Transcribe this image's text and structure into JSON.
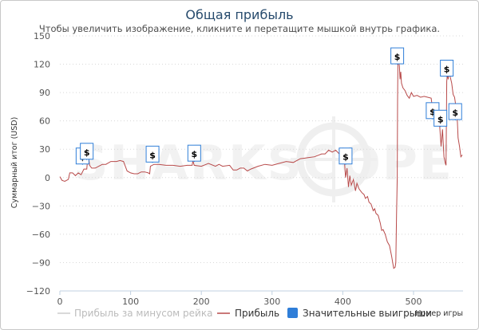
{
  "chart_data": {
    "type": "line",
    "title": "Общая прибыль",
    "subtitle": "Чтобы увеличить изображение, кликните и перетащите мышкой внутрь графика.",
    "xlabel": "Номер игры",
    "ylabel": "Суммарный итог (USD)",
    "xlim": [
      0,
      570
    ],
    "ylim": [
      -120,
      150
    ],
    "x_ticks": [
      0,
      100,
      200,
      300,
      400,
      500
    ],
    "y_ticks": [
      -120,
      -90,
      -60,
      -30,
      0,
      30,
      60,
      90,
      120,
      150
    ],
    "watermark": "SHARKSCOPE",
    "legend": [
      {
        "label": "Прибыль за минусом рейка",
        "color": "#cccccc",
        "kind": "line"
      },
      {
        "label": "Прибыль",
        "color": "#b84a4a",
        "kind": "line"
      },
      {
        "label": "Значительные выигрыши",
        "color": "#2f7ed8",
        "kind": "box"
      }
    ],
    "series": [
      {
        "name": "Прибыль",
        "color": "#b84a4a",
        "points": [
          [
            0,
            1
          ],
          [
            3,
            -3
          ],
          [
            7,
            -4
          ],
          [
            12,
            -2
          ],
          [
            14,
            5
          ],
          [
            18,
            5
          ],
          [
            22,
            2
          ],
          [
            26,
            5
          ],
          [
            30,
            3
          ],
          [
            34,
            9
          ],
          [
            38,
            9
          ],
          [
            40,
            26
          ],
          [
            42,
            13
          ],
          [
            45,
            10
          ],
          [
            50,
            10
          ],
          [
            55,
            12
          ],
          [
            60,
            14
          ],
          [
            65,
            14
          ],
          [
            72,
            17
          ],
          [
            80,
            17
          ],
          [
            85,
            18
          ],
          [
            90,
            17
          ],
          [
            95,
            7
          ],
          [
            100,
            5
          ],
          [
            105,
            4
          ],
          [
            110,
            4
          ],
          [
            115,
            6
          ],
          [
            120,
            6
          ],
          [
            125,
            5
          ],
          [
            127,
            4
          ],
          [
            128,
            12
          ],
          [
            133,
            14
          ],
          [
            140,
            14
          ],
          [
            150,
            13
          ],
          [
            160,
            13
          ],
          [
            170,
            12
          ],
          [
            180,
            13
          ],
          [
            187,
            13
          ],
          [
            188,
            18
          ],
          [
            190,
            13
          ],
          [
            200,
            12
          ],
          [
            210,
            15
          ],
          [
            220,
            12
          ],
          [
            225,
            14
          ],
          [
            230,
            12
          ],
          [
            240,
            13
          ],
          [
            245,
            8
          ],
          [
            250,
            8
          ],
          [
            255,
            10
          ],
          [
            260,
            10
          ],
          [
            265,
            7
          ],
          [
            270,
            9
          ],
          [
            280,
            12
          ],
          [
            290,
            14
          ],
          [
            300,
            13
          ],
          [
            310,
            15
          ],
          [
            320,
            17
          ],
          [
            330,
            16
          ],
          [
            340,
            20
          ],
          [
            350,
            21
          ],
          [
            360,
            22
          ],
          [
            370,
            25
          ],
          [
            375,
            25
          ],
          [
            380,
            29
          ],
          [
            385,
            27
          ],
          [
            390,
            29
          ],
          [
            395,
            25
          ],
          [
            397,
            22
          ],
          [
            398,
            30
          ],
          [
            400,
            31
          ],
          [
            402,
            20
          ],
          [
            404,
            0
          ],
          [
            406,
            10
          ],
          [
            408,
            -10
          ],
          [
            410,
            2
          ],
          [
            412,
            -8
          ],
          [
            415,
            -2
          ],
          [
            418,
            -14
          ],
          [
            420,
            -6
          ],
          [
            423,
            -12
          ],
          [
            427,
            -16
          ],
          [
            430,
            -18
          ],
          [
            432,
            -22
          ],
          [
            435,
            -20
          ],
          [
            437,
            -26
          ],
          [
            440,
            -28
          ],
          [
            443,
            -35
          ],
          [
            445,
            -33
          ],
          [
            447,
            -38
          ],
          [
            450,
            -40
          ],
          [
            453,
            -48
          ],
          [
            455,
            -56
          ],
          [
            457,
            -55
          ],
          [
            460,
            -60
          ],
          [
            463,
            -68
          ],
          [
            466,
            -72
          ],
          [
            469,
            -83
          ],
          [
            471,
            -92
          ],
          [
            472,
            -96
          ],
          [
            474,
            -95
          ],
          [
            475,
            -90
          ],
          [
            476,
            -40
          ],
          [
            477,
            0
          ],
          [
            477.5,
            80
          ],
          [
            478,
            128
          ],
          [
            479,
            123
          ],
          [
            480,
            118
          ],
          [
            481,
            104
          ],
          [
            482,
            112
          ],
          [
            483,
            100
          ],
          [
            485,
            95
          ],
          [
            488,
            92
          ],
          [
            491,
            87
          ],
          [
            494,
            84
          ],
          [
            497,
            90
          ],
          [
            500,
            86
          ],
          [
            505,
            87
          ],
          [
            510,
            85
          ],
          [
            515,
            86
          ],
          [
            520,
            85
          ],
          [
            525,
            84
          ],
          [
            527,
            72
          ],
          [
            529,
            66
          ],
          [
            531,
            56
          ],
          [
            533,
            64
          ],
          [
            535,
            69
          ],
          [
            537,
            54
          ],
          [
            539,
            33
          ],
          [
            541,
            51
          ],
          [
            543,
            22
          ],
          [
            545,
            15
          ],
          [
            546,
            13
          ],
          [
            547,
            102
          ],
          [
            548,
            110
          ],
          [
            549,
            104
          ],
          [
            550,
            112
          ],
          [
            552,
            106
          ],
          [
            554,
            100
          ],
          [
            556,
            88
          ],
          [
            558,
            85
          ],
          [
            560,
            75
          ],
          [
            562,
            60
          ],
          [
            563,
            42
          ],
          [
            565,
            33
          ],
          [
            567,
            22
          ],
          [
            569,
            24
          ]
        ]
      }
    ],
    "big_wins": [
      {
        "x": 32,
        "y": 22
      },
      {
        "x": 38,
        "y": 27
      },
      {
        "x": 131,
        "y": 24
      },
      {
        "x": 190,
        "y": 25
      },
      {
        "x": 404,
        "y": 22
      },
      {
        "x": 477,
        "y": 128
      },
      {
        "x": 527,
        "y": 70
      },
      {
        "x": 538,
        "y": 62
      },
      {
        "x": 547,
        "y": 115
      },
      {
        "x": 559,
        "y": 69
      }
    ]
  }
}
